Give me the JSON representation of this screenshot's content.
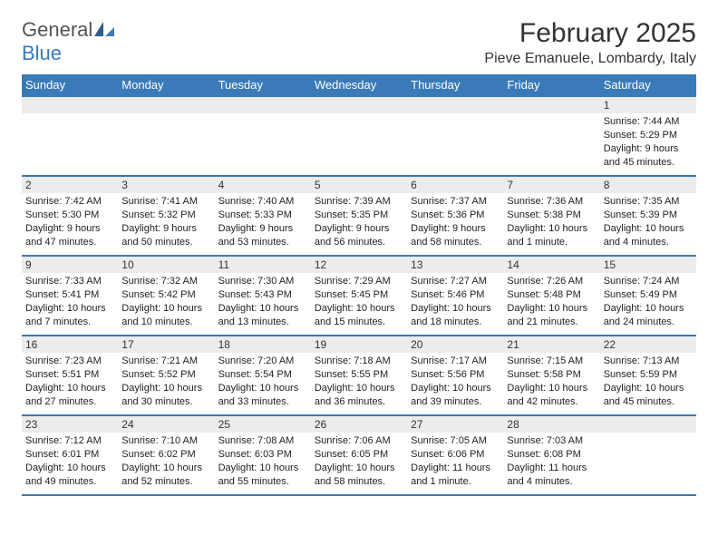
{
  "brand": {
    "part1": "General",
    "part2": "Blue"
  },
  "title": "February 2025",
  "location": "Pieve Emanuele, Lombardy, Italy",
  "colors": {
    "accent": "#3a7ab8",
    "header_bg": "#3a7ab8",
    "daynum_bg": "#ececec",
    "text": "#222"
  },
  "day_header_fontsize": 13,
  "title_fontsize": 30,
  "location_fontsize": 16,
  "cell_fontsize": 11,
  "weekdays": [
    "Sunday",
    "Monday",
    "Tuesday",
    "Wednesday",
    "Thursday",
    "Friday",
    "Saturday"
  ],
  "weeks": [
    [
      {
        "day": "",
        "sunrise": "",
        "sunset": "",
        "daylight": ""
      },
      {
        "day": "",
        "sunrise": "",
        "sunset": "",
        "daylight": ""
      },
      {
        "day": "",
        "sunrise": "",
        "sunset": "",
        "daylight": ""
      },
      {
        "day": "",
        "sunrise": "",
        "sunset": "",
        "daylight": ""
      },
      {
        "day": "",
        "sunrise": "",
        "sunset": "",
        "daylight": ""
      },
      {
        "day": "",
        "sunrise": "",
        "sunset": "",
        "daylight": ""
      },
      {
        "day": "1",
        "sunrise": "Sunrise: 7:44 AM",
        "sunset": "Sunset: 5:29 PM",
        "daylight": "Daylight: 9 hours and 45 minutes."
      }
    ],
    [
      {
        "day": "2",
        "sunrise": "Sunrise: 7:42 AM",
        "sunset": "Sunset: 5:30 PM",
        "daylight": "Daylight: 9 hours and 47 minutes."
      },
      {
        "day": "3",
        "sunrise": "Sunrise: 7:41 AM",
        "sunset": "Sunset: 5:32 PM",
        "daylight": "Daylight: 9 hours and 50 minutes."
      },
      {
        "day": "4",
        "sunrise": "Sunrise: 7:40 AM",
        "sunset": "Sunset: 5:33 PM",
        "daylight": "Daylight: 9 hours and 53 minutes."
      },
      {
        "day": "5",
        "sunrise": "Sunrise: 7:39 AM",
        "sunset": "Sunset: 5:35 PM",
        "daylight": "Daylight: 9 hours and 56 minutes."
      },
      {
        "day": "6",
        "sunrise": "Sunrise: 7:37 AM",
        "sunset": "Sunset: 5:36 PM",
        "daylight": "Daylight: 9 hours and 58 minutes."
      },
      {
        "day": "7",
        "sunrise": "Sunrise: 7:36 AM",
        "sunset": "Sunset: 5:38 PM",
        "daylight": "Daylight: 10 hours and 1 minute."
      },
      {
        "day": "8",
        "sunrise": "Sunrise: 7:35 AM",
        "sunset": "Sunset: 5:39 PM",
        "daylight": "Daylight: 10 hours and 4 minutes."
      }
    ],
    [
      {
        "day": "9",
        "sunrise": "Sunrise: 7:33 AM",
        "sunset": "Sunset: 5:41 PM",
        "daylight": "Daylight: 10 hours and 7 minutes."
      },
      {
        "day": "10",
        "sunrise": "Sunrise: 7:32 AM",
        "sunset": "Sunset: 5:42 PM",
        "daylight": "Daylight: 10 hours and 10 minutes."
      },
      {
        "day": "11",
        "sunrise": "Sunrise: 7:30 AM",
        "sunset": "Sunset: 5:43 PM",
        "daylight": "Daylight: 10 hours and 13 minutes."
      },
      {
        "day": "12",
        "sunrise": "Sunrise: 7:29 AM",
        "sunset": "Sunset: 5:45 PM",
        "daylight": "Daylight: 10 hours and 15 minutes."
      },
      {
        "day": "13",
        "sunrise": "Sunrise: 7:27 AM",
        "sunset": "Sunset: 5:46 PM",
        "daylight": "Daylight: 10 hours and 18 minutes."
      },
      {
        "day": "14",
        "sunrise": "Sunrise: 7:26 AM",
        "sunset": "Sunset: 5:48 PM",
        "daylight": "Daylight: 10 hours and 21 minutes."
      },
      {
        "day": "15",
        "sunrise": "Sunrise: 7:24 AM",
        "sunset": "Sunset: 5:49 PM",
        "daylight": "Daylight: 10 hours and 24 minutes."
      }
    ],
    [
      {
        "day": "16",
        "sunrise": "Sunrise: 7:23 AM",
        "sunset": "Sunset: 5:51 PM",
        "daylight": "Daylight: 10 hours and 27 minutes."
      },
      {
        "day": "17",
        "sunrise": "Sunrise: 7:21 AM",
        "sunset": "Sunset: 5:52 PM",
        "daylight": "Daylight: 10 hours and 30 minutes."
      },
      {
        "day": "18",
        "sunrise": "Sunrise: 7:20 AM",
        "sunset": "Sunset: 5:54 PM",
        "daylight": "Daylight: 10 hours and 33 minutes."
      },
      {
        "day": "19",
        "sunrise": "Sunrise: 7:18 AM",
        "sunset": "Sunset: 5:55 PM",
        "daylight": "Daylight: 10 hours and 36 minutes."
      },
      {
        "day": "20",
        "sunrise": "Sunrise: 7:17 AM",
        "sunset": "Sunset: 5:56 PM",
        "daylight": "Daylight: 10 hours and 39 minutes."
      },
      {
        "day": "21",
        "sunrise": "Sunrise: 7:15 AM",
        "sunset": "Sunset: 5:58 PM",
        "daylight": "Daylight: 10 hours and 42 minutes."
      },
      {
        "day": "22",
        "sunrise": "Sunrise: 7:13 AM",
        "sunset": "Sunset: 5:59 PM",
        "daylight": "Daylight: 10 hours and 45 minutes."
      }
    ],
    [
      {
        "day": "23",
        "sunrise": "Sunrise: 7:12 AM",
        "sunset": "Sunset: 6:01 PM",
        "daylight": "Daylight: 10 hours and 49 minutes."
      },
      {
        "day": "24",
        "sunrise": "Sunrise: 7:10 AM",
        "sunset": "Sunset: 6:02 PM",
        "daylight": "Daylight: 10 hours and 52 minutes."
      },
      {
        "day": "25",
        "sunrise": "Sunrise: 7:08 AM",
        "sunset": "Sunset: 6:03 PM",
        "daylight": "Daylight: 10 hours and 55 minutes."
      },
      {
        "day": "26",
        "sunrise": "Sunrise: 7:06 AM",
        "sunset": "Sunset: 6:05 PM",
        "daylight": "Daylight: 10 hours and 58 minutes."
      },
      {
        "day": "27",
        "sunrise": "Sunrise: 7:05 AM",
        "sunset": "Sunset: 6:06 PM",
        "daylight": "Daylight: 11 hours and 1 minute."
      },
      {
        "day": "28",
        "sunrise": "Sunrise: 7:03 AM",
        "sunset": "Sunset: 6:08 PM",
        "daylight": "Daylight: 11 hours and 4 minutes."
      },
      {
        "day": "",
        "sunrise": "",
        "sunset": "",
        "daylight": ""
      }
    ]
  ]
}
